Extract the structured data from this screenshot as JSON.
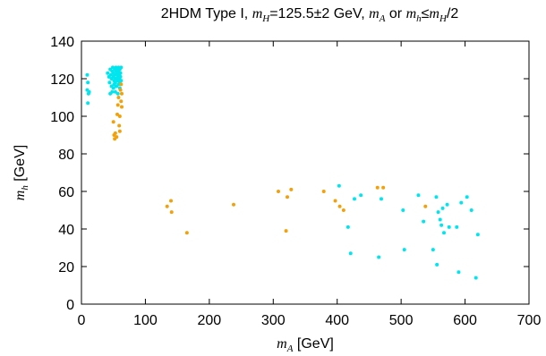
{
  "chart_data": {
    "type": "scatter",
    "title": {
      "prefix": "2HDM Type I, ",
      "m1": "m",
      "m1_sub": "H",
      "mid1": "=125.5±2 GeV, ",
      "m2": "m",
      "m2_sub": "A",
      "mid2": " or ",
      "m3": "m",
      "m3_sub": "h",
      "mid3": "≤",
      "m4": "m",
      "m4_sub": "H",
      "suffix": "/2"
    },
    "xlabel": {
      "sym": "m",
      "sub": "A",
      "unit": " [GeV]"
    },
    "ylabel": {
      "sym": "m",
      "sub": "h",
      "unit": " [GeV]"
    },
    "xlim": [
      0,
      700
    ],
    "ylim": [
      0,
      140
    ],
    "xticks": [
      "0",
      "100",
      "200",
      "300",
      "400",
      "500",
      "600",
      "700"
    ],
    "yticks": [
      "0",
      "20",
      "40",
      "60",
      "80",
      "100",
      "120",
      "140"
    ],
    "grid": false,
    "legend": "none",
    "series": [
      {
        "color": "#00e5ee",
        "points": [
          [
            9,
            122
          ],
          [
            10,
            118
          ],
          [
            9,
            114
          ],
          [
            11,
            112
          ],
          [
            10,
            107
          ],
          [
            12,
            113
          ],
          [
            41,
            123
          ],
          [
            43,
            121
          ],
          [
            44,
            118
          ],
          [
            45,
            125
          ],
          [
            46,
            122
          ],
          [
            47,
            120
          ],
          [
            47,
            116
          ],
          [
            48,
            113
          ],
          [
            48,
            124
          ],
          [
            49,
            126
          ],
          [
            50,
            123
          ],
          [
            50,
            121
          ],
          [
            51,
            119
          ],
          [
            51,
            117
          ],
          [
            52,
            125
          ],
          [
            52,
            122
          ],
          [
            53,
            120
          ],
          [
            53,
            118
          ],
          [
            54,
            126
          ],
          [
            54,
            124
          ],
          [
            55,
            122
          ],
          [
            55,
            120
          ],
          [
            55,
            116
          ],
          [
            56,
            125
          ],
          [
            56,
            123
          ],
          [
            57,
            121
          ],
          [
            57,
            119
          ],
          [
            58,
            126
          ],
          [
            58,
            124
          ],
          [
            58,
            117
          ],
          [
            59,
            122
          ],
          [
            59,
            120
          ],
          [
            60,
            125
          ],
          [
            60,
            118
          ],
          [
            61,
            123
          ],
          [
            61,
            121
          ],
          [
            62,
            126
          ],
          [
            62,
            119
          ],
          [
            53,
            113
          ],
          [
            57,
            112
          ],
          [
            45,
            112
          ],
          [
            50,
            115
          ],
          [
            60,
            115
          ],
          [
            54,
            116
          ],
          [
            403,
            63
          ],
          [
            417,
            41
          ],
          [
            421,
            27
          ],
          [
            427,
            56
          ],
          [
            437,
            58
          ],
          [
            465,
            25
          ],
          [
            469,
            56
          ],
          [
            503,
            50
          ],
          [
            505,
            29
          ],
          [
            527,
            58
          ],
          [
            535,
            44
          ],
          [
            550,
            29
          ],
          [
            555,
            57
          ],
          [
            556,
            21
          ],
          [
            558,
            49
          ],
          [
            561,
            45
          ],
          [
            563,
            42
          ],
          [
            565,
            51
          ],
          [
            567,
            38
          ],
          [
            572,
            53
          ],
          [
            575,
            41
          ],
          [
            587,
            41
          ],
          [
            590,
            17
          ],
          [
            594,
            54
          ],
          [
            603,
            57
          ],
          [
            610,
            50
          ],
          [
            617,
            14
          ],
          [
            620,
            37
          ]
        ]
      },
      {
        "color": "#f3a10b",
        "points": [
          [
            50,
            97
          ],
          [
            51,
            90
          ],
          [
            52,
            88
          ],
          [
            53,
            91
          ],
          [
            55,
            89
          ],
          [
            56,
            101
          ],
          [
            57,
            106
          ],
          [
            58,
            110
          ],
          [
            59,
            95
          ],
          [
            60,
            92
          ],
          [
            60,
            100
          ],
          [
            61,
            114
          ],
          [
            62,
            108
          ],
          [
            62,
            117
          ],
          [
            63,
            105
          ],
          [
            63,
            112
          ],
          [
            134,
            52
          ],
          [
            140,
            55
          ],
          [
            141,
            49
          ],
          [
            165,
            38
          ],
          [
            238,
            53
          ],
          [
            308,
            60
          ],
          [
            320,
            39
          ],
          [
            322,
            57
          ],
          [
            328,
            61
          ],
          [
            379,
            60
          ],
          [
            397,
            55
          ],
          [
            404,
            52
          ],
          [
            410,
            50
          ],
          [
            463,
            62
          ],
          [
            472,
            62
          ],
          [
            538,
            52
          ]
        ]
      }
    ]
  }
}
